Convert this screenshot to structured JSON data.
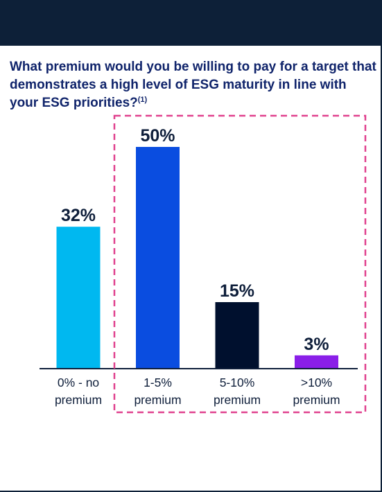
{
  "question": {
    "text": "What premium would you be willing to pay for a target that demonstrates a high level of ESG maturity in line with your ESG priorities?",
    "footnote": "(1)"
  },
  "chart_data": {
    "type": "bar",
    "categories": [
      [
        "0% - no",
        "premium"
      ],
      [
        "1-5%",
        "premium"
      ],
      [
        "5-10%",
        "premium"
      ],
      [
        ">10%",
        "premium"
      ]
    ],
    "values": [
      32,
      50,
      15,
      3
    ],
    "value_labels": [
      "32%",
      "50%",
      "15%",
      "3%"
    ],
    "colors": [
      "#00b8f0",
      "#0a4de0",
      "#00102e",
      "#8a1fe8"
    ],
    "highlight_color": "#e0408e",
    "highlighted_categories": [
      1,
      2,
      3
    ],
    "ylim": [
      0,
      50
    ],
    "grid": false,
    "legend": "none"
  }
}
